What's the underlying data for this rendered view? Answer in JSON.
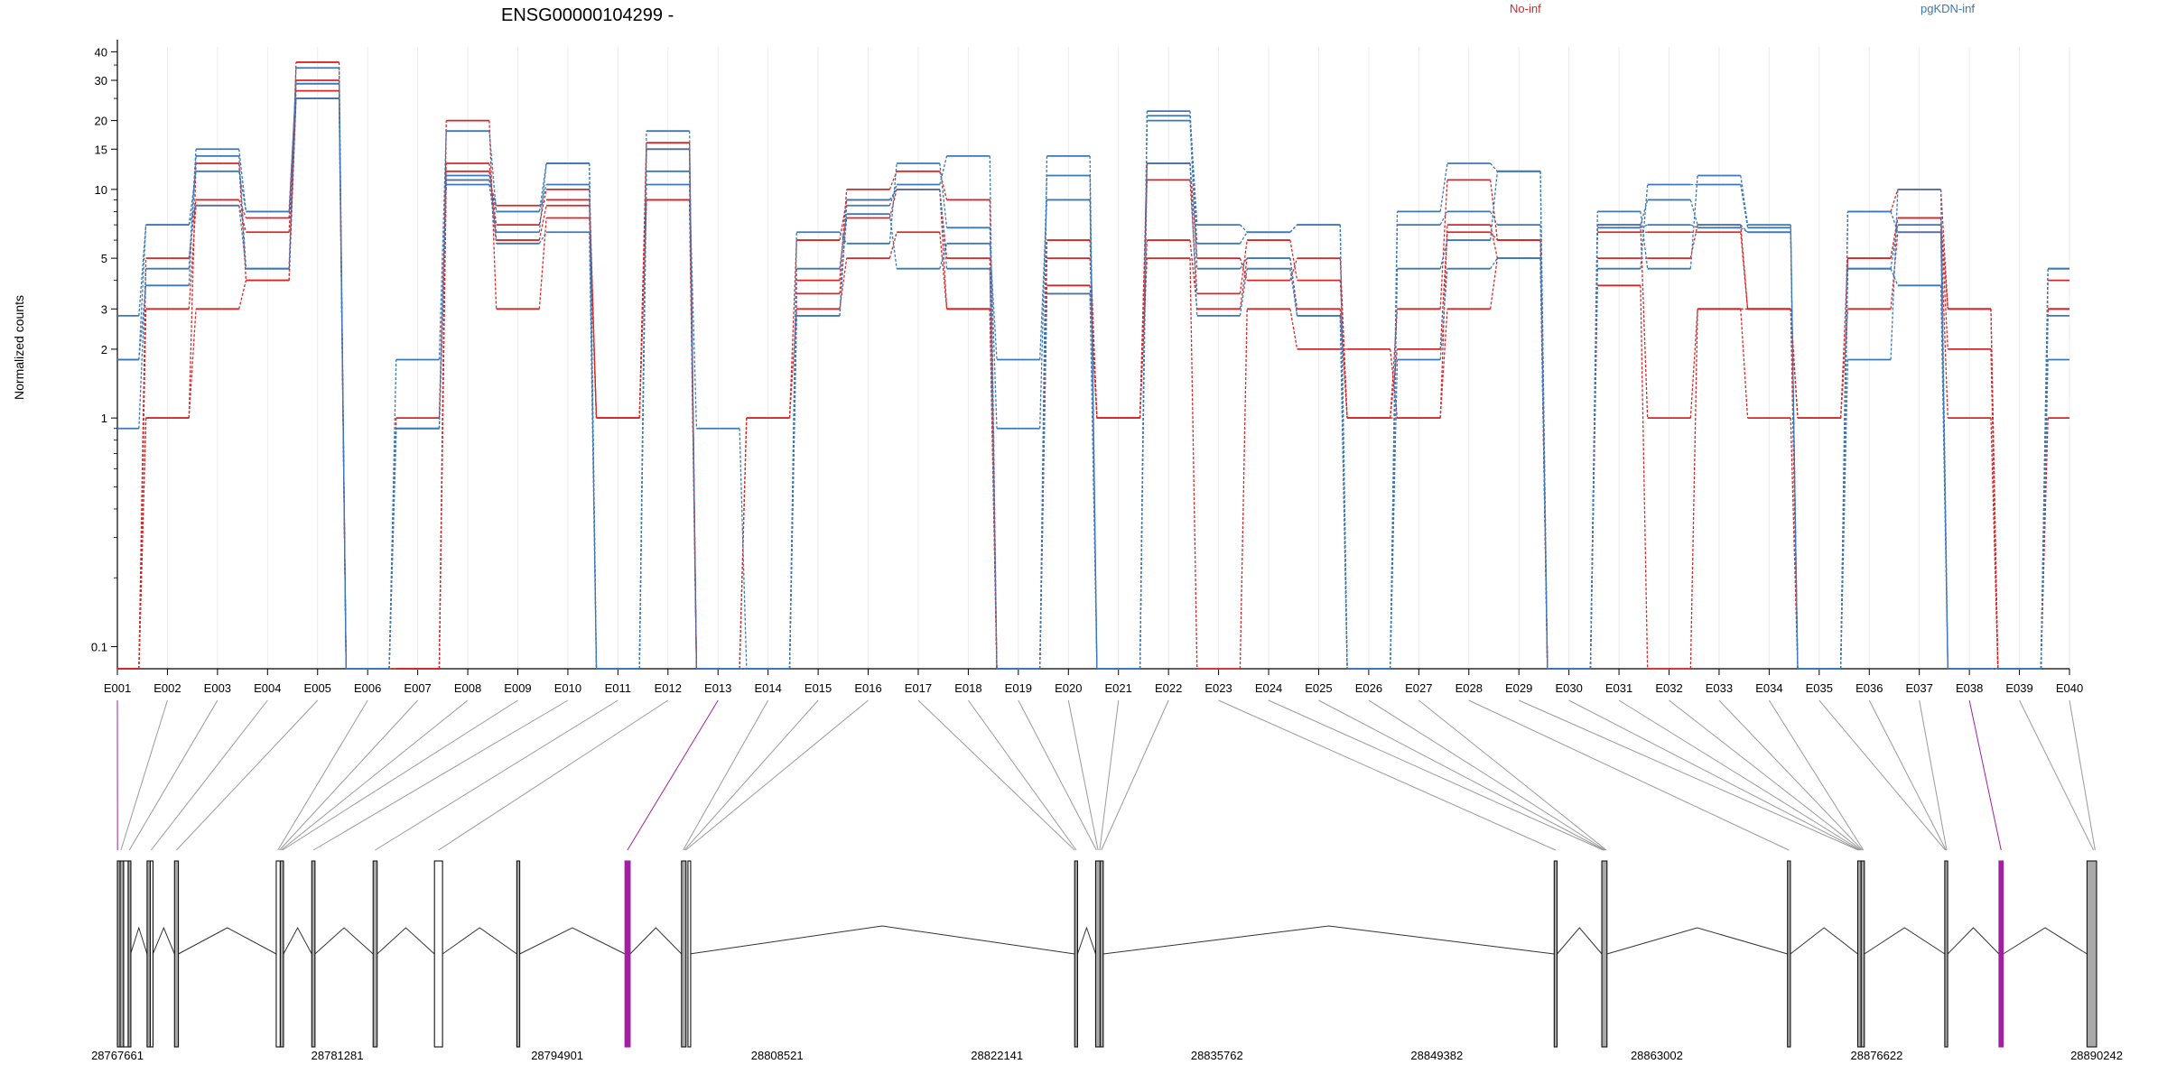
{
  "title": "ENSG00000104299 -",
  "legend": [
    {
      "label": "No-inf",
      "color": "#d62728"
    },
    {
      "label": "pgKDN-inf",
      "color": "#3a78b8"
    }
  ],
  "ylabel": "Normalized counts",
  "chart_data": {
    "type": "line",
    "title": "ENSG00000104299 -",
    "ylabel": "Normalized counts",
    "xlabel": "",
    "yscale": "log",
    "ylim": [
      0.08,
      42
    ],
    "yticks": [
      0.1,
      1,
      2,
      3,
      5,
      10,
      15,
      20,
      30,
      40
    ],
    "ytick_labels": [
      "0.1",
      "1",
      "2",
      "3",
      "5",
      "10",
      "15",
      "20",
      "30",
      "40"
    ],
    "grid": "vertical",
    "legend_position": "top-right",
    "categories": [
      "E001",
      "E002",
      "E003",
      "E004",
      "E005",
      "E006",
      "E007",
      "E008",
      "E009",
      "E010",
      "E011",
      "E012",
      "E013",
      "E014",
      "E015",
      "E016",
      "E017",
      "E018",
      "E019",
      "E020",
      "E021",
      "E022",
      "E023",
      "E024",
      "E025",
      "E026",
      "E027",
      "E028",
      "E029",
      "E030",
      "E031",
      "E032",
      "E033",
      "E034",
      "E035",
      "E036",
      "E037",
      "E038",
      "E039",
      "E040"
    ],
    "series": [
      {
        "name": "No-inf",
        "color": "#d62728",
        "values": [
          0.08,
          1,
          3,
          4,
          25,
          0.08,
          0.08,
          20,
          3,
          7.5,
          1,
          9,
          0.08,
          1,
          3,
          5,
          6.5,
          3,
          0.08,
          5,
          1,
          5,
          0.08,
          3,
          2,
          2,
          1,
          3,
          5,
          0.08,
          3.8,
          0.08,
          3,
          3,
          1,
          3,
          6.5,
          1,
          0.08,
          1
        ]
      },
      {
        "name": "No-inf",
        "color": "#d62728",
        "values": [
          0.08,
          3,
          8.5,
          6.5,
          27,
          0.08,
          1,
          13,
          6,
          8.5,
          1,
          15,
          0.08,
          0.08,
          3.5,
          7.5,
          10,
          5,
          0.08,
          3.5,
          1,
          6,
          3,
          5,
          3,
          1,
          2,
          6.5,
          6,
          0.08,
          6.5,
          6.5,
          6.5,
          3,
          1,
          5,
          7.5,
          2,
          0.08,
          3
        ]
      },
      {
        "name": "No-inf",
        "color": "#d62728",
        "values": [
          0.08,
          5,
          9,
          7.5,
          30,
          0.08,
          0.08,
          12,
          7,
          10,
          1,
          16,
          0.08,
          0.08,
          4,
          10,
          12,
          9,
          0.08,
          6,
          1,
          11,
          3.5,
          6,
          4,
          1,
          3,
          11,
          6,
          0.08,
          7,
          1,
          3,
          1,
          0.08,
          8,
          10,
          3,
          0.08,
          4
        ]
      },
      {
        "name": "No-inf",
        "color": "#d62728",
        "values": [
          0.08,
          1,
          13,
          4,
          36,
          0.08,
          0.08,
          11,
          8.5,
          9,
          1,
          9,
          0.08,
          1,
          6,
          9,
          10,
          3,
          0.08,
          3.8,
          1,
          13,
          5,
          4,
          5,
          1,
          1,
          7,
          5,
          0.08,
          5,
          5,
          7,
          3,
          0.08,
          5,
          7.5,
          3,
          0.08,
          3
        ]
      },
      {
        "name": "pgKDN-inf",
        "color": "#3a78b8",
        "values": [
          2.8,
          7,
          12,
          8,
          29,
          0.08,
          1.8,
          18,
          8,
          13,
          0.08,
          10.5,
          0.9,
          0.08,
          4.5,
          7.8,
          4.5,
          5.8,
          1.8,
          9,
          0.08,
          20,
          4.5,
          5,
          2.8,
          0.08,
          1.8,
          4.5,
          5,
          0.08,
          4.5,
          10.5,
          10.5,
          6.8,
          0.08,
          4.5,
          3.8,
          0.08,
          0.08,
          1.8
        ]
      },
      {
        "name": "pgKDN-inf",
        "color": "#3a78b8",
        "values": [
          1.8,
          3.8,
          14,
          4.5,
          34,
          0.08,
          0.9,
          11,
          5.8,
          6.5,
          0.08,
          12,
          0.08,
          0.08,
          6.5,
          5.8,
          13,
          6.8,
          0.9,
          11.5,
          0.08,
          21,
          7,
          6.5,
          7,
          0.08,
          7,
          8,
          7,
          0.08,
          8,
          4.5,
          11.5,
          7,
          0.08,
          8,
          6.5,
          0.08,
          0.08,
          2.8
        ]
      },
      {
        "name": "pgKDN-inf",
        "color": "#3a78b8",
        "values": [
          0.9,
          4.5,
          15,
          8,
          29,
          0.08,
          0.9,
          11.5,
          8,
          10.5,
          0.08,
          18,
          0.08,
          0.08,
          2.8,
          8.5,
          10.5,
          14,
          0.08,
          14,
          0.08,
          22,
          5.8,
          6.5,
          7,
          0.08,
          8,
          13,
          12,
          0.08,
          7,
          9,
          7,
          6.5,
          0.08,
          1.8,
          10,
          0.08,
          0.08,
          4.5
        ]
      },
      {
        "name": "pgKDN-inf",
        "color": "#3a78b8",
        "values": [
          1.8,
          7,
          8.5,
          4.5,
          25,
          0.08,
          0.9,
          10.5,
          6.5,
          13,
          0.08,
          15,
          0.08,
          0.08,
          2.8,
          9,
          10,
          4.5,
          0.08,
          3.5,
          0.08,
          13,
          2.8,
          4.5,
          2.8,
          0.08,
          4.5,
          6,
          12,
          0.08,
          6.8,
          7,
          6.8,
          6.5,
          0.08,
          4.5,
          7,
          0.08,
          0.08,
          4.5
        ]
      }
    ],
    "gene_model": {
      "start": 28767661,
      "end": 28890242,
      "coordinate_ticks": [
        "28767661",
        "28781281",
        "28794901",
        "28808521",
        "28822141",
        "28835762",
        "28849382",
        "28863002",
        "28876622",
        "28890242"
      ],
      "highlight_color": "#a020a0",
      "exons": [
        {
          "start": 28767661,
          "end": 28767830
        },
        {
          "start": 28767830,
          "end": 28768050
        },
        {
          "start": 28768050,
          "end": 28768330,
          "open": true
        },
        {
          "start": 28768330,
          "end": 28768480
        },
        {
          "start": 28769500,
          "end": 28769700
        },
        {
          "start": 28769700,
          "end": 28769860,
          "open": true
        },
        {
          "start": 28771200,
          "end": 28771440
        },
        {
          "start": 28777500,
          "end": 28777750,
          "open": true
        },
        {
          "start": 28777750,
          "end": 28777950
        },
        {
          "start": 28779700,
          "end": 28779900
        },
        {
          "start": 28783500,
          "end": 28783750
        },
        {
          "start": 28787300,
          "end": 28787800,
          "open": true
        },
        {
          "start": 28792400,
          "end": 28792580
        },
        {
          "start": 28799100,
          "end": 28799420,
          "highlight": true
        },
        {
          "start": 28802600,
          "end": 28802880
        },
        {
          "start": 28803000,
          "end": 28803100,
          "open": true
        },
        {
          "start": 28826950,
          "end": 28827130
        },
        {
          "start": 28828250,
          "end": 28828530
        },
        {
          "start": 28828530,
          "end": 28828720
        },
        {
          "start": 28856650,
          "end": 28856830
        },
        {
          "start": 28859600,
          "end": 28859920
        },
        {
          "start": 28871100,
          "end": 28871280
        },
        {
          "start": 28875450,
          "end": 28875660
        },
        {
          "start": 28875660,
          "end": 28875860
        },
        {
          "start": 28880840,
          "end": 28881020
        },
        {
          "start": 28884200,
          "end": 28884460,
          "highlight": true
        },
        {
          "start": 28889650,
          "end": 28890242
        }
      ],
      "feature_map": [
        {
          "feature": "E001",
          "coord": 28767670,
          "highlight": true
        },
        {
          "feature": "E002",
          "coord": 28767880
        },
        {
          "feature": "E003",
          "coord": 28768400
        },
        {
          "feature": "E004",
          "coord": 28769750
        },
        {
          "feature": "E005",
          "coord": 28771320
        },
        {
          "feature": "E006",
          "coord": 28777600
        },
        {
          "feature": "E007",
          "coord": 28777700
        },
        {
          "feature": "E008",
          "coord": 28777800
        },
        {
          "feature": "E009",
          "coord": 28777880
        },
        {
          "feature": "E010",
          "coord": 28779800
        },
        {
          "feature": "E011",
          "coord": 28783620
        },
        {
          "feature": "E012",
          "coord": 28787550
        },
        {
          "feature": "E013",
          "coord": 28799250,
          "highlight": true
        },
        {
          "feature": "E014",
          "coord": 28802700
        },
        {
          "feature": "E015",
          "coord": 28802780
        },
        {
          "feature": "E016",
          "coord": 28802860
        },
        {
          "feature": "E017",
          "coord": 28826950
        },
        {
          "feature": "E018",
          "coord": 28827050
        },
        {
          "feature": "E019",
          "coord": 28828300
        },
        {
          "feature": "E020",
          "coord": 28828400
        },
        {
          "feature": "E021",
          "coord": 28828500
        },
        {
          "feature": "E022",
          "coord": 28828600
        },
        {
          "feature": "E023",
          "coord": 28856740
        },
        {
          "feature": "E024",
          "coord": 28859700
        },
        {
          "feature": "E025",
          "coord": 28859760
        },
        {
          "feature": "E026",
          "coord": 28859820
        },
        {
          "feature": "E027",
          "coord": 28859880
        },
        {
          "feature": "E028",
          "coord": 28871190
        },
        {
          "feature": "E029",
          "coord": 28875500
        },
        {
          "feature": "E030",
          "coord": 28875560
        },
        {
          "feature": "E031",
          "coord": 28875620
        },
        {
          "feature": "E032",
          "coord": 28875680
        },
        {
          "feature": "E033",
          "coord": 28875740
        },
        {
          "feature": "E034",
          "coord": 28875800
        },
        {
          "feature": "E035",
          "coord": 28880880
        },
        {
          "feature": "E036",
          "coord": 28880920
        },
        {
          "feature": "E037",
          "coord": 28880960
        },
        {
          "feature": "E038",
          "coord": 28884330,
          "highlight": true
        },
        {
          "feature": "E039",
          "coord": 28890050
        },
        {
          "feature": "E040",
          "coord": 28890150
        }
      ]
    }
  }
}
